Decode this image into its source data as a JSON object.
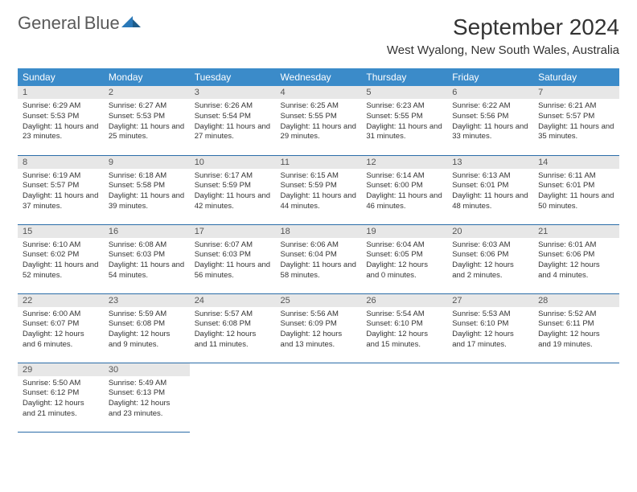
{
  "logo": {
    "word1": "General",
    "word2": "Blue"
  },
  "title": "September 2024",
  "location": "West Wyalong, New South Wales, Australia",
  "colors": {
    "header_bg": "#3b8bc9",
    "header_text": "#ffffff",
    "daynum_bg": "#e7e7e7",
    "cell_border": "#2a6ca8",
    "logo_gray": "#5a5a5a",
    "logo_blue": "#2a78b8"
  },
  "weekdays": [
    "Sunday",
    "Monday",
    "Tuesday",
    "Wednesday",
    "Thursday",
    "Friday",
    "Saturday"
  ],
  "grid": [
    [
      {
        "n": "1",
        "sr": "6:29 AM",
        "ss": "5:53 PM",
        "dl": "11 hours and 23 minutes."
      },
      {
        "n": "2",
        "sr": "6:27 AM",
        "ss": "5:53 PM",
        "dl": "11 hours and 25 minutes."
      },
      {
        "n": "3",
        "sr": "6:26 AM",
        "ss": "5:54 PM",
        "dl": "11 hours and 27 minutes."
      },
      {
        "n": "4",
        "sr": "6:25 AM",
        "ss": "5:55 PM",
        "dl": "11 hours and 29 minutes."
      },
      {
        "n": "5",
        "sr": "6:23 AM",
        "ss": "5:55 PM",
        "dl": "11 hours and 31 minutes."
      },
      {
        "n": "6",
        "sr": "6:22 AM",
        "ss": "5:56 PM",
        "dl": "11 hours and 33 minutes."
      },
      {
        "n": "7",
        "sr": "6:21 AM",
        "ss": "5:57 PM",
        "dl": "11 hours and 35 minutes."
      }
    ],
    [
      {
        "n": "8",
        "sr": "6:19 AM",
        "ss": "5:57 PM",
        "dl": "11 hours and 37 minutes."
      },
      {
        "n": "9",
        "sr": "6:18 AM",
        "ss": "5:58 PM",
        "dl": "11 hours and 39 minutes."
      },
      {
        "n": "10",
        "sr": "6:17 AM",
        "ss": "5:59 PM",
        "dl": "11 hours and 42 minutes."
      },
      {
        "n": "11",
        "sr": "6:15 AM",
        "ss": "5:59 PM",
        "dl": "11 hours and 44 minutes."
      },
      {
        "n": "12",
        "sr": "6:14 AM",
        "ss": "6:00 PM",
        "dl": "11 hours and 46 minutes."
      },
      {
        "n": "13",
        "sr": "6:13 AM",
        "ss": "6:01 PM",
        "dl": "11 hours and 48 minutes."
      },
      {
        "n": "14",
        "sr": "6:11 AM",
        "ss": "6:01 PM",
        "dl": "11 hours and 50 minutes."
      }
    ],
    [
      {
        "n": "15",
        "sr": "6:10 AM",
        "ss": "6:02 PM",
        "dl": "11 hours and 52 minutes."
      },
      {
        "n": "16",
        "sr": "6:08 AM",
        "ss": "6:03 PM",
        "dl": "11 hours and 54 minutes."
      },
      {
        "n": "17",
        "sr": "6:07 AM",
        "ss": "6:03 PM",
        "dl": "11 hours and 56 minutes."
      },
      {
        "n": "18",
        "sr": "6:06 AM",
        "ss": "6:04 PM",
        "dl": "11 hours and 58 minutes."
      },
      {
        "n": "19",
        "sr": "6:04 AM",
        "ss": "6:05 PM",
        "dl": "12 hours and 0 minutes."
      },
      {
        "n": "20",
        "sr": "6:03 AM",
        "ss": "6:06 PM",
        "dl": "12 hours and 2 minutes."
      },
      {
        "n": "21",
        "sr": "6:01 AM",
        "ss": "6:06 PM",
        "dl": "12 hours and 4 minutes."
      }
    ],
    [
      {
        "n": "22",
        "sr": "6:00 AM",
        "ss": "6:07 PM",
        "dl": "12 hours and 6 minutes."
      },
      {
        "n": "23",
        "sr": "5:59 AM",
        "ss": "6:08 PM",
        "dl": "12 hours and 9 minutes."
      },
      {
        "n": "24",
        "sr": "5:57 AM",
        "ss": "6:08 PM",
        "dl": "12 hours and 11 minutes."
      },
      {
        "n": "25",
        "sr": "5:56 AM",
        "ss": "6:09 PM",
        "dl": "12 hours and 13 minutes."
      },
      {
        "n": "26",
        "sr": "5:54 AM",
        "ss": "6:10 PM",
        "dl": "12 hours and 15 minutes."
      },
      {
        "n": "27",
        "sr": "5:53 AM",
        "ss": "6:10 PM",
        "dl": "12 hours and 17 minutes."
      },
      {
        "n": "28",
        "sr": "5:52 AM",
        "ss": "6:11 PM",
        "dl": "12 hours and 19 minutes."
      }
    ],
    [
      {
        "n": "29",
        "sr": "5:50 AM",
        "ss": "6:12 PM",
        "dl": "12 hours and 21 minutes."
      },
      {
        "n": "30",
        "sr": "5:49 AM",
        "ss": "6:13 PM",
        "dl": "12 hours and 23 minutes."
      },
      null,
      null,
      null,
      null,
      null
    ]
  ],
  "labels": {
    "sunrise": "Sunrise:",
    "sunset": "Sunset:",
    "daylight": "Daylight:"
  }
}
